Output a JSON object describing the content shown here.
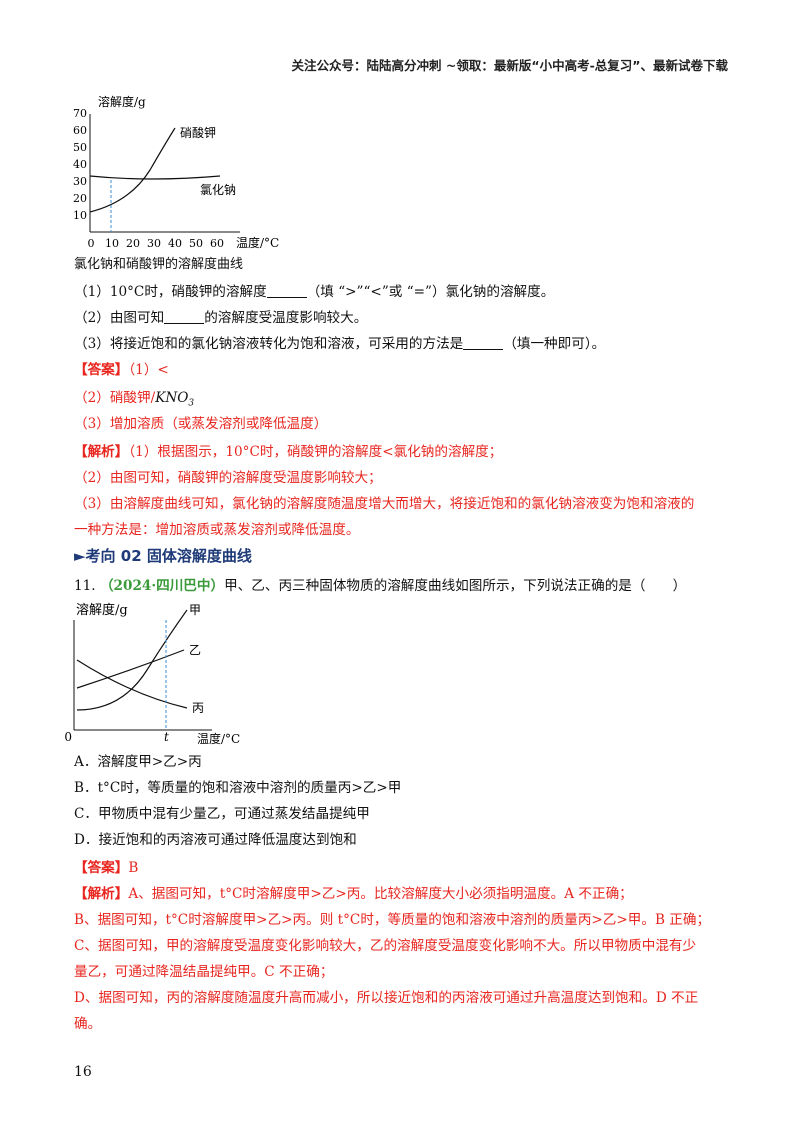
{
  "header": {
    "text": "关注公众号：陆陆高分冲刺 ~领取：最新版“小中高考-总复习”、最新试卷下载"
  },
  "figure1": {
    "ylabel": "溶解度/g",
    "xlabel": "温度/°C",
    "yticks": [
      "10",
      "20",
      "30",
      "40",
      "50",
      "60",
      "70"
    ],
    "xticks": [
      "0",
      "10",
      "20",
      "30",
      "40",
      "50",
      "60"
    ],
    "label_kno3": "硝酸钾",
    "label_nacl": "氯化钠",
    "caption": "氯化钠和硝酸钾的溶解度曲线"
  },
  "q10": {
    "line1_a": "（1）10°C时，硝酸钾的溶解度",
    "line1_b": "（填 “>”“<”或 “=”）氯化钠的溶解度。",
    "line2_a": "（2）由图可知",
    "line2_b": "的溶解度受温度影响较大。",
    "line3_a": "（3）将接近饱和的氯化钠溶液转化为饱和溶液，可采用的方法是",
    "line3_b": "（填一种即可）。",
    "answer_tag": "【答案】",
    "answer1": "（1）<",
    "answer2_a": "（2）硝酸钾/",
    "answer2_b": "KNO",
    "answer2_sub": "3",
    "answer3": "（3）增加溶质（或蒸发溶剂或降低温度）",
    "analysis_tag": "【解析】",
    "analysis1": "（1）根据图示，10°C时，硝酸钾的溶解度<氯化钠的溶解度；",
    "analysis2": "（2）由图可知，硝酸钾的溶解度受温度影响较大；",
    "analysis3a": "（3）由溶解度曲线可知，氯化钠的溶解度随温度增大而增大，将接近饱和的氯化钠溶液变为饱和溶液的",
    "analysis3b": "一种方法是：增加溶质或蒸发溶剂或降低温度。"
  },
  "section": {
    "marker": "►",
    "title": "考向 02  固体溶解度曲线"
  },
  "q11": {
    "number": "11.",
    "source": "（2024·四川巴中）",
    "stem": "甲、乙、丙三种固体物质的溶解度曲线如图所示，下列说法正确的是（　　）",
    "figure": {
      "ylabel": "溶解度/g",
      "xlabel": "温度/°C",
      "origin": "0",
      "tlabel": "t",
      "label_jia": "甲",
      "label_yi": "乙",
      "label_bing": "丙"
    },
    "optionA": "A．溶解度甲>乙>丙",
    "optionB": "B．t°C时，等质量的饱和溶液中溶剂的质量丙>乙>甲",
    "optionC": "C．甲物质中混有少量乙，可通过蒸发结晶提纯甲",
    "optionD": "D．接近饱和的丙溶液可通过降低温度达到饱和",
    "answer_tag": "【答案】",
    "answer": "B",
    "analysis_tag": "【解析】",
    "analysisA": "A、据图可知，t°C时溶解度甲>乙>丙。比较溶解度大小必须指明温度。A 不正确；",
    "analysisB": "B、据图可知，t°C时溶解度甲>乙>丙。则 t°C时，等质量的饱和溶液中溶剂的质量丙>乙>甲。B 正确；",
    "analysisC1": "C、据图可知，甲的溶解度受温度变化影响较大，乙的溶解度受温度变化影响不大。所以甲物质中混有少",
    "analysisC2": "量乙，可通过降温结晶提纯甲。C 不正确；",
    "analysisD1": "D、据图可知，丙的溶解度随温度升高而减小，所以接近饱和的丙溶液可通过升高温度达到饱和。D 不正",
    "analysisD2": "确。"
  },
  "page_number": "16"
}
